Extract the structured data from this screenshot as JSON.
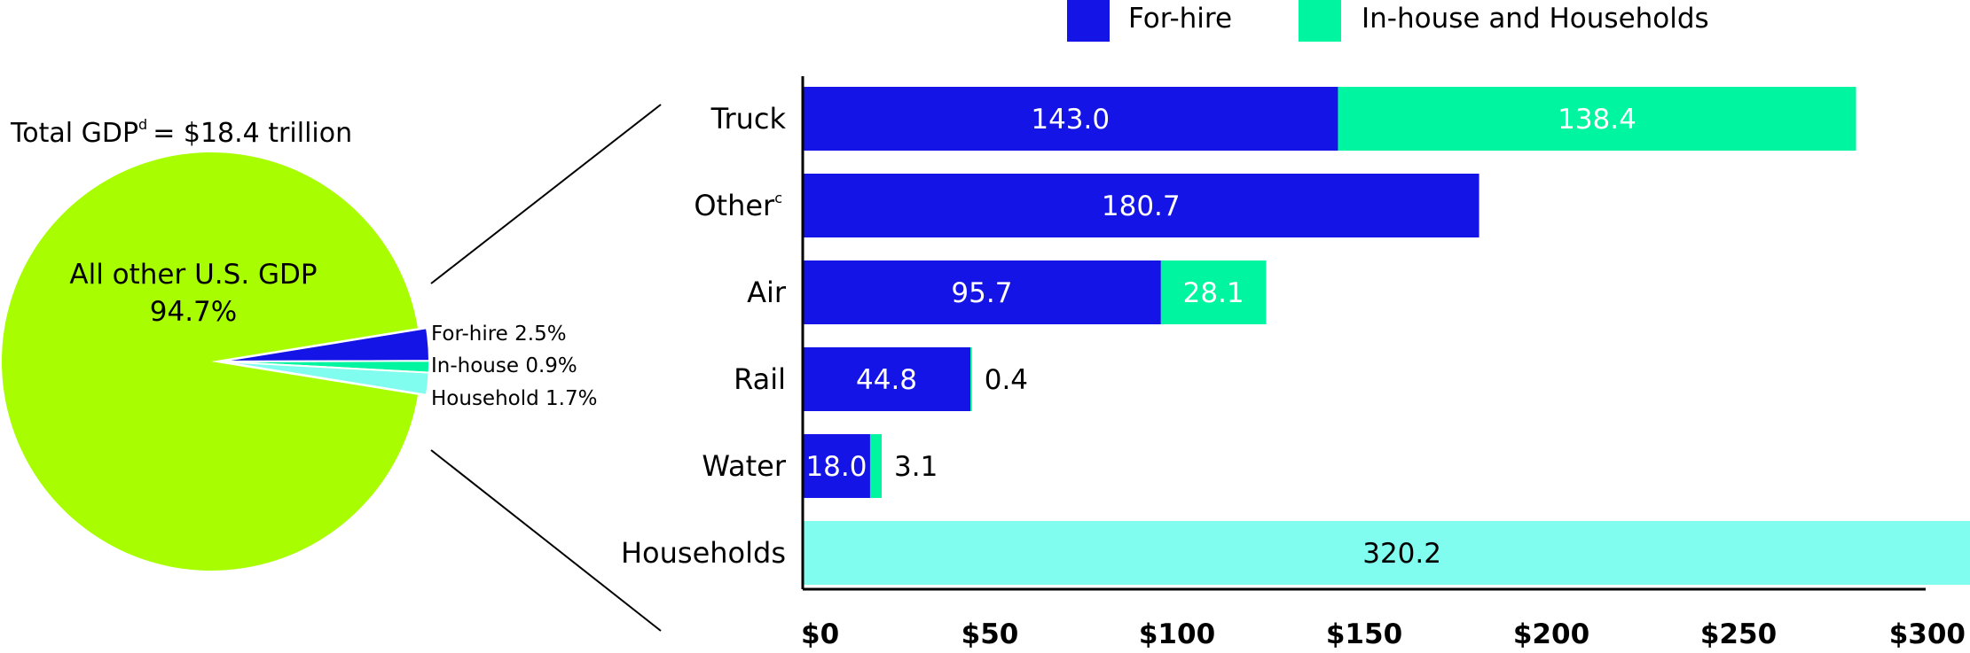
{
  "colors": {
    "for_hire": "#1414e6",
    "in_house": "#00f5a0",
    "households": "#80fdee",
    "other_gdp": "#a8fd00"
  },
  "chart_data": [
    {
      "type": "pie",
      "title": "Total GDP",
      "title_superscript": "d",
      "title_value": "= $18.4  trillion",
      "slices": [
        {
          "name": "All other U.S. GDP",
          "value": 94.7,
          "label": "94.7%"
        },
        {
          "name": "For-hire",
          "value": 2.5,
          "label": "For-hire 2.5%"
        },
        {
          "name": "In-house",
          "value": 0.9,
          "label": "In-house 0.9%"
        },
        {
          "name": "Household",
          "value": 1.7,
          "label": "Household 1.7%"
        }
      ]
    },
    {
      "type": "bar",
      "orientation": "horizontal",
      "stacked": true,
      "legend": [
        "For-hire",
        "In-house and Households"
      ],
      "legend_placement": "top",
      "categories": [
        {
          "name": "Truck",
          "superscript": ""
        },
        {
          "name": "Other",
          "superscript": "c"
        },
        {
          "name": "Air",
          "superscript": ""
        },
        {
          "name": "Rail",
          "superscript": ""
        },
        {
          "name": "Water",
          "superscript": ""
        },
        {
          "name": "Households",
          "superscript": ""
        }
      ],
      "series": [
        {
          "name": "For-hire",
          "values": [
            143.0,
            180.7,
            95.7,
            44.8,
            18.0,
            0
          ],
          "labels": [
            "143.0",
            "180.7",
            "95.7",
            "44.8",
            "18.0",
            ""
          ]
        },
        {
          "name": "In-house and Households",
          "values": [
            138.4,
            0,
            28.1,
            0.4,
            3.1,
            320.2
          ],
          "labels": [
            "138.4",
            "",
            "28.1",
            "0.4",
            "3.1",
            "320.2"
          ]
        }
      ],
      "label_inside": [
        [
          true,
          true,
          true,
          true,
          true,
          false
        ],
        [
          true,
          false,
          true,
          false,
          false,
          true
        ]
      ],
      "xlim": [
        0,
        300
      ],
      "xticks": [
        0,
        50,
        100,
        150,
        200,
        250,
        300
      ],
      "xtick_labels": [
        "$0",
        "$50",
        "$100",
        "$150",
        "$200",
        "$250",
        "$300"
      ],
      "grid": false
    }
  ]
}
